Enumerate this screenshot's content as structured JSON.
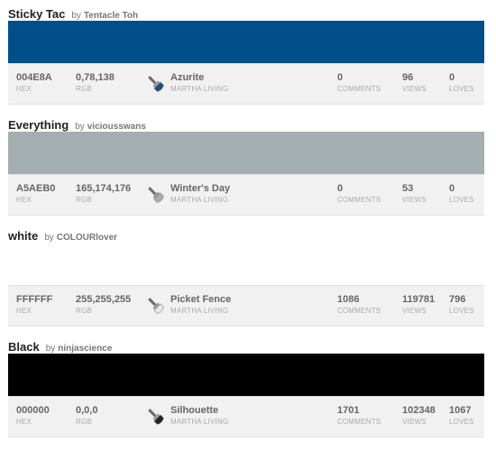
{
  "colors": [
    {
      "title": "Sticky Tac",
      "by_word": "by",
      "author": "Tentacle Toh",
      "swatch": "#004E8A",
      "brush_color": "#1f4e7a",
      "hex": "004E8A",
      "hex_label": "HEX",
      "rgb": "0,78,138",
      "rgb_label": "RGB",
      "palette_name": "Azurite",
      "palette_brand": "MARTHA LIVING",
      "comments": "0",
      "comments_label": "COMMENTS",
      "views": "96",
      "views_label": "VIEWS",
      "loves": "0",
      "loves_label": "LOVES"
    },
    {
      "title": "Everything",
      "by_word": "by",
      "author": "viciousswans",
      "swatch": "#A5AEB0",
      "brush_color": "#a5aeb0",
      "hex": "A5AEB0",
      "hex_label": "HEX",
      "rgb": "165,174,176",
      "rgb_label": "RGB",
      "palette_name": "Winter's Day",
      "palette_brand": "MARTHA LIVING",
      "comments": "0",
      "comments_label": "COMMENTS",
      "views": "53",
      "views_label": "VIEWS",
      "loves": "0",
      "loves_label": "LOVES"
    },
    {
      "title": "white",
      "by_word": "by",
      "author": "COLOURlover",
      "swatch": "#FFFFFF",
      "brush_color": "#e8e8e8",
      "hex": "FFFFFF",
      "hex_label": "HEX",
      "rgb": "255,255,255",
      "rgb_label": "RGB",
      "palette_name": "Picket Fence",
      "palette_brand": "MARTHA LIVING",
      "comments": "1086",
      "comments_label": "COMMENTS",
      "views": "119781",
      "views_label": "VIEWS",
      "loves": "796",
      "loves_label": "LOVES"
    },
    {
      "title": "Black",
      "by_word": "by",
      "author": "ninjascience",
      "swatch": "#000000",
      "brush_color": "#222222",
      "hex": "000000",
      "hex_label": "HEX",
      "rgb": "0,0,0",
      "rgb_label": "RGB",
      "palette_name": "Silhouette",
      "palette_brand": "MARTHA LIVING",
      "comments": "1701",
      "comments_label": "COMMENTS",
      "views": "102348",
      "views_label": "VIEWS",
      "loves": "1067",
      "loves_label": "LOVES"
    }
  ]
}
